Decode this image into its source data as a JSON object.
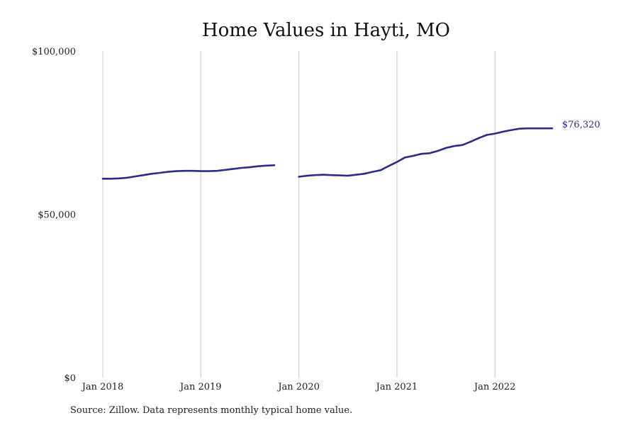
{
  "chart_data": {
    "type": "line",
    "title": "Home Values in Hayti, MO",
    "xlabel": "",
    "ylabel": "",
    "ylim": [
      0,
      100000
    ],
    "y_ticks": [
      {
        "value": 0,
        "label": "$0"
      },
      {
        "value": 50000,
        "label": "$50,000"
      },
      {
        "value": 100000,
        "label": "$100,000"
      }
    ],
    "x_ticks": [
      {
        "value": "2018-01",
        "label": "Jan 2018"
      },
      {
        "value": "2019-01",
        "label": "Jan 2019"
      },
      {
        "value": "2020-01",
        "label": "Jan 2020"
      },
      {
        "value": "2021-01",
        "label": "Jan 2021"
      },
      {
        "value": "2022-01",
        "label": "Jan 2022"
      }
    ],
    "grid": "vertical at year starts",
    "series": [
      {
        "color": "#2e2b8c",
        "segments": [
          {
            "x": [
              "2018-01",
              "2018-02",
              "2018-03",
              "2018-04",
              "2018-05",
              "2018-06",
              "2018-07",
              "2018-08",
              "2018-09",
              "2018-10",
              "2018-11",
              "2018-12",
              "2019-01",
              "2019-02",
              "2019-03",
              "2019-04",
              "2019-05",
              "2019-06",
              "2019-07",
              "2019-08",
              "2019-09",
              "2019-10"
            ],
            "y": [
              60900,
              60900,
              61000,
              61200,
              61600,
              62000,
              62400,
              62700,
              63000,
              63200,
              63300,
              63300,
              63200,
              63200,
              63300,
              63600,
              63900,
              64200,
              64400,
              64700,
              64900,
              65000
            ]
          },
          {
            "x": [
              "2020-01",
              "2020-02",
              "2020-03",
              "2020-04",
              "2020-05",
              "2020-06",
              "2020-07",
              "2020-08",
              "2020-09",
              "2020-10",
              "2020-11",
              "2020-12",
              "2021-01",
              "2021-02",
              "2021-03",
              "2021-04",
              "2021-05",
              "2021-06",
              "2021-07",
              "2021-08",
              "2021-09",
              "2021-10",
              "2021-11",
              "2021-12",
              "2022-01",
              "2022-02",
              "2022-03",
              "2022-04",
              "2022-05",
              "2022-06",
              "2022-07",
              "2022-08"
            ],
            "y": [
              61500,
              61800,
              62000,
              62100,
              62000,
              61900,
              61800,
              62100,
              62400,
              63000,
              63500,
              64800,
              66000,
              67400,
              67900,
              68500,
              68700,
              69400,
              70300,
              70900,
              71200,
              72200,
              73300,
              74300,
              74700,
              75300,
              75800,
              76200,
              76320,
              76320,
              76320,
              76320
            ]
          }
        ]
      }
    ],
    "end_label": "$76,320"
  },
  "source_note": "Source: Zillow. Data represents monthly typical home value."
}
